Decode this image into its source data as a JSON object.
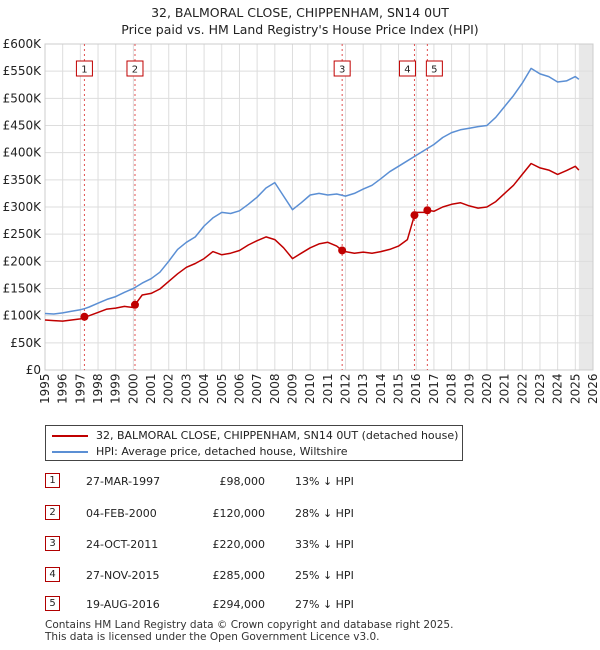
{
  "title_line1": "32, BALMORAL CLOSE, CHIPPENHAM, SN14 0UT",
  "title_line2": "Price paid vs. HM Land Registry's House Price Index (HPI)",
  "colors": {
    "property": "#c00000",
    "hpi": "#5b8fd4",
    "marker_border": "#c00000"
  },
  "legend": {
    "property_label": "32, BALMORAL CLOSE, CHIPPENHAM, SN14 0UT (detached house)",
    "hpi_label": "HPI: Average price, detached house, Wiltshire"
  },
  "sales": [
    {
      "num": "1",
      "date": "27-MAR-1997",
      "price": "£98,000",
      "hpi_diff": "13% ↓ HPI",
      "x": 1997.23,
      "y": 98000
    },
    {
      "num": "2",
      "date": "04-FEB-2000",
      "price": "£120,000",
      "hpi_diff": "28% ↓ HPI",
      "x": 2000.09,
      "y": 120000
    },
    {
      "num": "3",
      "date": "24-OCT-2011",
      "price": "£220,000",
      "hpi_diff": "33% ↓ HPI",
      "x": 2011.81,
      "y": 220000
    },
    {
      "num": "4",
      "date": "27-NOV-2015",
      "price": "£285,000",
      "hpi_diff": "25% ↓ HPI",
      "x": 2015.9,
      "y": 285000
    },
    {
      "num": "5",
      "date": "19-AUG-2016",
      "price": "£294,000",
      "hpi_diff": "27% ↓ HPI",
      "x": 2016.63,
      "y": 294000
    }
  ],
  "footer_line1": "Contains HM Land Registry data © Crown copyright and database right 2025.",
  "footer_line2": "This data is licensed under the Open Government Licence v3.0.",
  "chart_data": {
    "type": "line",
    "title": "32, BALMORAL CLOSE, CHIPPENHAM, SN14 0UT — Price paid vs. HM Land Registry's House Price Index (HPI)",
    "xlabel": "",
    "ylabel": "",
    "xlim": [
      1995,
      2026
    ],
    "ylim": [
      0,
      600000
    ],
    "x_ticks": [
      "1995",
      "1996",
      "1997",
      "1998",
      "1999",
      "2000",
      "2001",
      "2002",
      "2003",
      "2004",
      "2005",
      "2006",
      "2007",
      "2008",
      "2009",
      "2010",
      "2011",
      "2012",
      "2013",
      "2014",
      "2015",
      "2016",
      "2017",
      "2018",
      "2019",
      "2020",
      "2021",
      "2022",
      "2023",
      "2024",
      "2025",
      "2026"
    ],
    "y_ticks": [
      {
        "value": 0,
        "label": "£0"
      },
      {
        "value": 50000,
        "label": "£50K"
      },
      {
        "value": 100000,
        "label": "£100K"
      },
      {
        "value": 150000,
        "label": "£150K"
      },
      {
        "value": 200000,
        "label": "£200K"
      },
      {
        "value": 250000,
        "label": "£250K"
      },
      {
        "value": 300000,
        "label": "£300K"
      },
      {
        "value": 350000,
        "label": "£350K"
      },
      {
        "value": 400000,
        "label": "£400K"
      },
      {
        "value": 450000,
        "label": "£450K"
      },
      {
        "value": 500000,
        "label": "£500K"
      },
      {
        "value": 550000,
        "label": "£550K"
      },
      {
        "value": 600000,
        "label": "£600K"
      }
    ],
    "grid": true,
    "shaded_future_from": 2025.2,
    "series": [
      {
        "name": "HPI: Average price, detached house, Wiltshire",
        "color": "#5b8fd4",
        "x": [
          1995.0,
          1995.5,
          1996.0,
          1996.5,
          1997.0,
          1997.25,
          1997.5,
          1998.0,
          1998.5,
          1999.0,
          1999.5,
          2000.0,
          2000.5,
          2001.0,
          2001.5,
          2002.0,
          2002.5,
          2003.0,
          2003.5,
          2004.0,
          2004.5,
          2005.0,
          2005.5,
          2006.0,
          2006.5,
          2007.0,
          2007.5,
          2008.0,
          2008.5,
          2009.0,
          2009.5,
          2010.0,
          2010.5,
          2011.0,
          2011.5,
          2012.0,
          2012.5,
          2013.0,
          2013.5,
          2014.0,
          2014.5,
          2015.0,
          2015.5,
          2016.0,
          2016.5,
          2017.0,
          2017.5,
          2018.0,
          2018.5,
          2019.0,
          2019.5,
          2020.0,
          2020.5,
          2021.0,
          2021.5,
          2022.0,
          2022.5,
          2023.0,
          2023.5,
          2024.0,
          2024.5,
          2025.0,
          2025.2
        ],
        "values": [
          104000,
          103000,
          105000,
          108000,
          111000,
          113000,
          116000,
          123000,
          130000,
          135000,
          143000,
          150000,
          160000,
          168000,
          180000,
          200000,
          222000,
          235000,
          245000,
          265000,
          280000,
          290000,
          288000,
          293000,
          305000,
          318000,
          335000,
          345000,
          320000,
          295000,
          308000,
          322000,
          325000,
          322000,
          324000,
          320000,
          325000,
          333000,
          340000,
          352000,
          365000,
          375000,
          385000,
          395000,
          405000,
          415000,
          428000,
          437000,
          442000,
          445000,
          448000,
          450000,
          465000,
          485000,
          505000,
          528000,
          555000,
          545000,
          540000,
          530000,
          532000,
          540000,
          535000
        ]
      },
      {
        "name": "32, BALMORAL CLOSE, CHIPPENHAM, SN14 0UT (detached house)",
        "color": "#c00000",
        "x": [
          1995.0,
          1995.5,
          1996.0,
          1996.5,
          1997.0,
          1997.23,
          1997.5,
          1998.0,
          1998.5,
          1999.0,
          1999.5,
          2000.0,
          2000.09,
          2000.5,
          2001.0,
          2001.5,
          2002.0,
          2002.5,
          2003.0,
          2003.5,
          2004.0,
          2004.5,
          2005.0,
          2005.5,
          2006.0,
          2006.5,
          2007.0,
          2007.5,
          2008.0,
          2008.5,
          2009.0,
          2009.5,
          2010.0,
          2010.5,
          2011.0,
          2011.5,
          2011.81,
          2012.0,
          2012.5,
          2013.0,
          2013.5,
          2014.0,
          2014.5,
          2015.0,
          2015.5,
          2015.9,
          2016.0,
          2016.5,
          2016.63,
          2017.0,
          2017.5,
          2018.0,
          2018.5,
          2019.0,
          2019.5,
          2020.0,
          2020.5,
          2021.0,
          2021.5,
          2022.0,
          2022.5,
          2023.0,
          2023.5,
          2024.0,
          2024.5,
          2025.0,
          2025.2
        ],
        "values": [
          92000,
          91000,
          90000,
          92000,
          94000,
          98000,
          100000,
          106000,
          112000,
          114000,
          117000,
          115000,
          120000,
          138000,
          141000,
          149000,
          163000,
          177000,
          189000,
          196000,
          205000,
          218000,
          212000,
          215000,
          220000,
          230000,
          238000,
          245000,
          240000,
          225000,
          205000,
          215000,
          225000,
          232000,
          235000,
          228000,
          220000,
          218000,
          215000,
          217000,
          215000,
          218000,
          222000,
          228000,
          240000,
          285000,
          290000,
          290000,
          294000,
          292000,
          300000,
          305000,
          308000,
          302000,
          298000,
          300000,
          310000,
          325000,
          340000,
          360000,
          380000,
          372000,
          368000,
          360000,
          367000,
          375000,
          368000
        ]
      }
    ]
  }
}
